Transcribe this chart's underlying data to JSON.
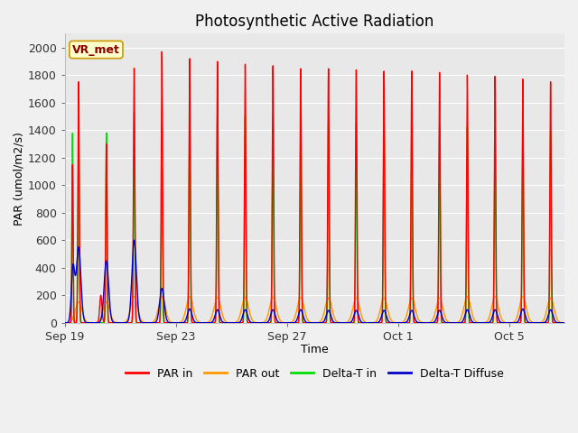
{
  "title": "Photosynthetic Active Radiation",
  "xlabel": "Time",
  "ylabel": "PAR (umol/m2/s)",
  "legend_label": "VR_met",
  "series_labels": [
    "PAR in",
    "PAR out",
    "Delta-T in",
    "Delta-T Diffuse"
  ],
  "series_colors": [
    "#ff0000",
    "#ff9900",
    "#00dd00",
    "#0000cc"
  ],
  "ylim": [
    0,
    2100
  ],
  "axes_facecolor": "#e8e8e8",
  "fig_facecolor": "#f0f0f0",
  "x_tick_labels": [
    "Sep 19",
    "Sep 23",
    "Sep 27",
    "Oct 1",
    "Oct 5"
  ],
  "x_tick_positions": [
    0,
    4,
    8,
    12,
    16
  ],
  "y_tick_labels": [
    "0",
    "200",
    "400",
    "600",
    "800",
    "1000",
    "1200",
    "1400",
    "1600",
    "1800",
    "2000"
  ],
  "num_days": 18,
  "ppd": 288,
  "vr_box_color": "#ffffcc",
  "vr_box_edge_color": "#cc9900"
}
